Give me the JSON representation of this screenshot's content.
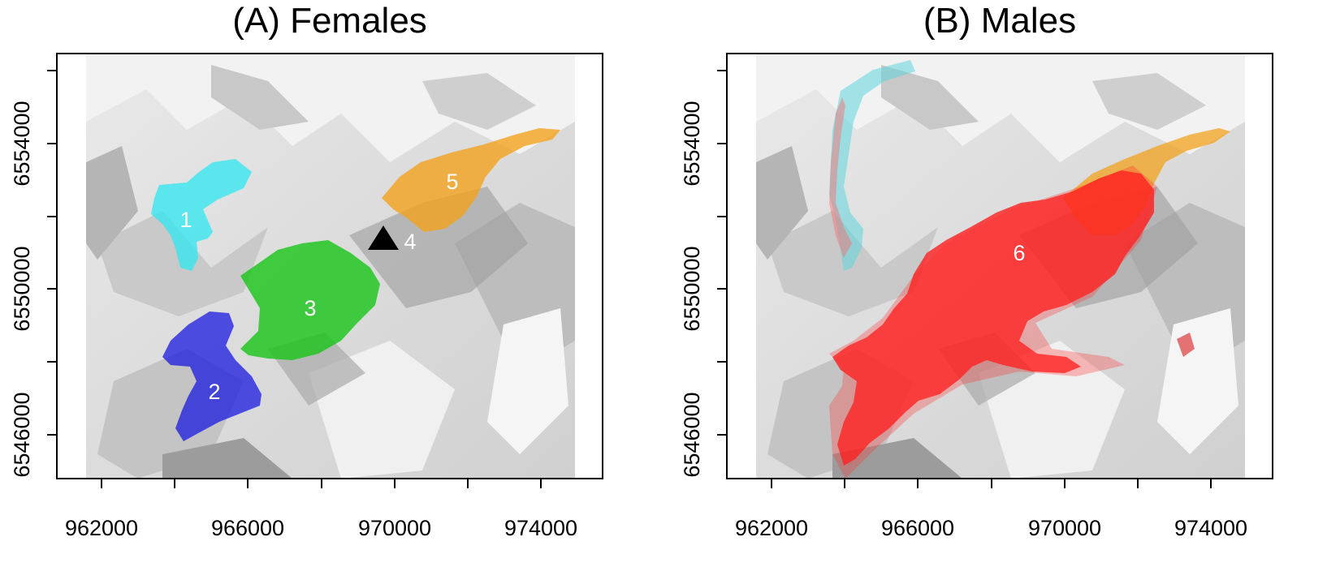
{
  "figure": {
    "panels": [
      {
        "id": "A",
        "title": "(A) Females",
        "x_ticks": [
          "962000",
          "966000",
          "970000",
          "974000"
        ],
        "y_ticks": [
          "6546000",
          "6550000",
          "6554000"
        ],
        "ranges": [
          {
            "label": "1",
            "color": "#2ee6ef",
            "opacity": 0.75
          },
          {
            "label": "2",
            "color": "#1a1ae0",
            "opacity": 0.75
          },
          {
            "label": "3",
            "color": "#18c418",
            "opacity": 0.8
          },
          {
            "label": "5",
            "color": "#f2a21e",
            "opacity": 0.8
          }
        ],
        "marker": {
          "label": "4",
          "shape": "triangle",
          "color": "#000000"
        }
      },
      {
        "id": "B",
        "title": "(B) Males",
        "x_ticks": [
          "962000",
          "966000",
          "970000",
          "974000"
        ],
        "y_ticks": [
          "6546000",
          "6550000",
          "6554000"
        ],
        "ranges": [
          {
            "label": "",
            "color": "#5fd6dc",
            "opacity": 0.55
          },
          {
            "label": "",
            "color": "#f2a21e",
            "opacity": 0.75
          },
          {
            "label": "6",
            "color": "#ff1a1a",
            "opacity": 0.75
          }
        ]
      }
    ]
  }
}
